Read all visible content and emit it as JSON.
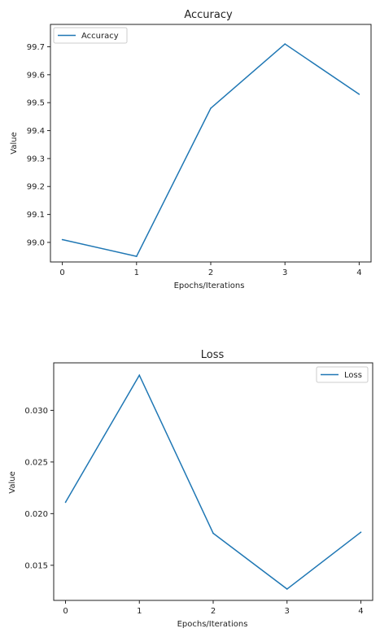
{
  "chart_data": [
    {
      "type": "line",
      "title": "Accuracy",
      "xlabel": "Epochs/Iterations",
      "ylabel": "Value",
      "x": [
        0,
        1,
        2,
        3,
        4
      ],
      "xticks": [
        "0",
        "1",
        "2",
        "3",
        "4"
      ],
      "yticks": [
        "99.0",
        "99.1",
        "99.2",
        "99.3",
        "99.4",
        "99.5",
        "99.6",
        "99.7"
      ],
      "ylim": [
        98.93,
        99.78
      ],
      "xlim": [
        -0.16,
        4.16
      ],
      "grid": false,
      "legend_position": "top-left",
      "series": [
        {
          "name": "Accuracy",
          "color": "#1f77b4",
          "values": [
            99.01,
            98.95,
            99.48,
            99.71,
            99.53
          ]
        }
      ]
    },
    {
      "type": "line",
      "title": "Loss",
      "xlabel": "Epochs/Iterations",
      "ylabel": "Value",
      "x": [
        0,
        1,
        2,
        3,
        4
      ],
      "xticks": [
        "0",
        "1",
        "2",
        "3",
        "4"
      ],
      "yticks": [
        "0.015",
        "0.020",
        "0.025",
        "0.030"
      ],
      "ylim": [
        0.0116,
        0.0346
      ],
      "xlim": [
        -0.16,
        4.16
      ],
      "grid": false,
      "legend_position": "top-right",
      "series": [
        {
          "name": "Loss",
          "color": "#1f77b4",
          "values": [
            0.0211,
            0.0334,
            0.0181,
            0.0127,
            0.0182
          ]
        }
      ]
    }
  ]
}
